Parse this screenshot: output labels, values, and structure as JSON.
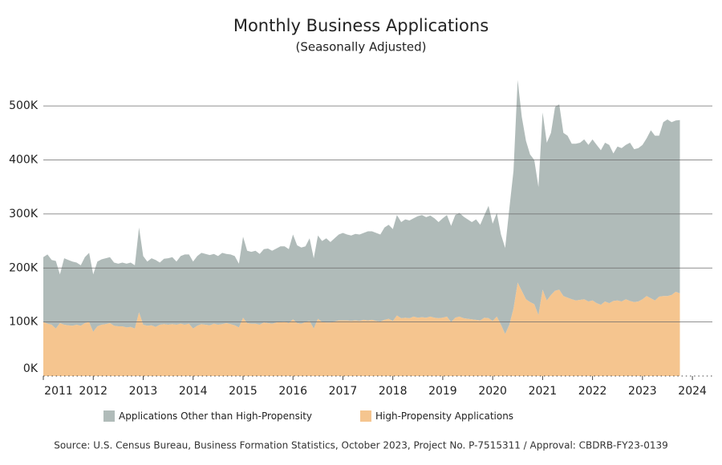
{
  "chart_data": {
    "type": "stacked_area",
    "title": "Monthly Business Applications",
    "subtitle": "(Seasonally Adjusted)",
    "source": "Source: U.S. Census Bureau, Business Formation Statistics, October 2023, Project No. P-7515311 / Approval: CBDRB-FY23-0139",
    "xlim": [
      2011,
      2024.4
    ],
    "xticks": [
      2011,
      2012,
      2013,
      2014,
      2015,
      2016,
      2017,
      2018,
      2019,
      2020,
      2021,
      2022,
      2023,
      2024
    ],
    "ylim": [
      0,
      570000
    ],
    "yticks": [
      {
        "value": 0,
        "label": "0K"
      },
      {
        "value": 100000,
        "label": "100K"
      },
      {
        "value": 200000,
        "label": "200K"
      },
      {
        "value": 300000,
        "label": "300K"
      },
      {
        "value": 400000,
        "label": "400K"
      },
      {
        "value": 500000,
        "label": "500K"
      }
    ],
    "grid": true,
    "legend": "bottom",
    "x": [
      2011,
      2011.083,
      2011.167,
      2011.25,
      2011.333,
      2011.417,
      2011.5,
      2011.583,
      2011.667,
      2011.75,
      2011.833,
      2011.917,
      2012,
      2012.083,
      2012.167,
      2012.25,
      2012.333,
      2012.417,
      2012.5,
      2012.583,
      2012.667,
      2012.75,
      2012.833,
      2012.917,
      2013,
      2013.083,
      2013.167,
      2013.25,
      2013.333,
      2013.417,
      2013.5,
      2013.583,
      2013.667,
      2013.75,
      2013.833,
      2013.917,
      2014,
      2014.083,
      2014.167,
      2014.25,
      2014.333,
      2014.417,
      2014.5,
      2014.583,
      2014.667,
      2014.75,
      2014.833,
      2014.917,
      2015,
      2015.083,
      2015.167,
      2015.25,
      2015.333,
      2015.417,
      2015.5,
      2015.583,
      2015.667,
      2015.75,
      2015.833,
      2015.917,
      2016,
      2016.083,
      2016.167,
      2016.25,
      2016.333,
      2016.417,
      2016.5,
      2016.583,
      2016.667,
      2016.75,
      2016.833,
      2016.917,
      2017,
      2017.083,
      2017.167,
      2017.25,
      2017.333,
      2017.417,
      2017.5,
      2017.583,
      2017.667,
      2017.75,
      2017.833,
      2017.917,
      2018,
      2018.083,
      2018.167,
      2018.25,
      2018.333,
      2018.417,
      2018.5,
      2018.583,
      2018.667,
      2018.75,
      2018.833,
      2018.917,
      2019,
      2019.083,
      2019.167,
      2019.25,
      2019.333,
      2019.417,
      2019.5,
      2019.583,
      2019.667,
      2019.75,
      2019.833,
      2019.917,
      2020,
      2020.083,
      2020.167,
      2020.25,
      2020.333,
      2020.417,
      2020.5,
      2020.583,
      2020.667,
      2020.75,
      2020.833,
      2020.917,
      2021,
      2021.083,
      2021.167,
      2021.25,
      2021.333,
      2021.417,
      2021.5,
      2021.583,
      2021.667,
      2021.75,
      2021.833,
      2021.917,
      2022,
      2022.083,
      2022.167,
      2022.25,
      2022.333,
      2022.417,
      2022.5,
      2022.583,
      2022.667,
      2022.75,
      2022.833,
      2022.917,
      2023,
      2023.083,
      2023.167,
      2023.25,
      2023.333,
      2023.417,
      2023.5,
      2023.583,
      2023.667,
      2023.75
    ],
    "series": [
      {
        "name": "Applications Other than High-Propensity",
        "color": "#b0bbb9",
        "values": [
          120000,
          128000,
          120000,
          125000,
          90000,
          123000,
          121000,
          119000,
          115000,
          112000,
          122000,
          128000,
          106000,
          120000,
          121000,
          122000,
          122000,
          117000,
          116000,
          118000,
          118000,
          119000,
          117000,
          157000,
          127000,
          119000,
          124000,
          124000,
          115000,
          121000,
          123000,
          124000,
          117000,
          125000,
          130000,
          128000,
          124000,
          129000,
          132000,
          131000,
          130000,
          129000,
          127000,
          132000,
          128000,
          129000,
          128000,
          118000,
          150000,
          134000,
          133000,
          135000,
          131000,
          136000,
          138000,
          135000,
          137000,
          140000,
          139000,
          137000,
          157000,
          144000,
          141000,
          140000,
          153000,
          130000,
          154000,
          150000,
          156000,
          149000,
          154000,
          159000,
          162000,
          159000,
          158000,
          160000,
          160000,
          161000,
          165000,
          164000,
          163000,
          161000,
          171000,
          174000,
          170000,
          186000,
          178000,
          182000,
          181000,
          182000,
          188000,
          189000,
          186000,
          187000,
          184000,
          178000,
          184000,
          188000,
          178000,
          190000,
          192000,
          188000,
          184000,
          180000,
          186000,
          177000,
          190000,
          208000,
          180000,
          192000,
          167000,
          159000,
          215000,
          255000,
          375000,
          322000,
          293000,
          273000,
          267000,
          237000,
          328000,
          292000,
          300000,
          340000,
          343000,
          302000,
          300000,
          288000,
          290000,
          291000,
          296000,
          290000,
          298000,
          293000,
          286000,
          294000,
          293000,
          273000,
          285000,
          284000,
          286000,
          293000,
          283000,
          284000,
          286000,
          292000,
          311000,
          305000,
          298000,
          322000,
          327000,
          320000,
          317000,
          321000
        ]
      },
      {
        "name": "High-Propensity Applications",
        "color": "#f5c58f",
        "values": [
          100000,
          97000,
          95000,
          88000,
          98000,
          95000,
          94000,
          93000,
          95000,
          93000,
          98000,
          100000,
          82000,
          92000,
          95000,
          96000,
          98000,
          93000,
          92000,
          92000,
          90000,
          91000,
          88000,
          118000,
          95000,
          93000,
          94000,
          91000,
          95000,
          96000,
          95000,
          96000,
          95000,
          97000,
          95000,
          97000,
          88000,
          93000,
          96000,
          95000,
          94000,
          97000,
          95000,
          96000,
          98000,
          96000,
          94000,
          90000,
          108000,
          98000,
          97000,
          97000,
          95000,
          99000,
          98000,
          97000,
          99000,
          100000,
          101000,
          98000,
          105000,
          98000,
          97000,
          100000,
          102000,
          88000,
          106000,
          100000,
          99000,
          99000,
          101000,
          103000,
          103000,
          103000,
          102000,
          103000,
          102000,
          104000,
          103000,
          104000,
          102000,
          101000,
          104000,
          106000,
          102000,
          112000,
          107000,
          108000,
          107000,
          110000,
          108000,
          109000,
          108000,
          110000,
          108000,
          107000,
          108000,
          110000,
          100000,
          108000,
          110000,
          107000,
          106000,
          105000,
          104000,
          103000,
          108000,
          107000,
          102000,
          110000,
          95000,
          78000,
          95000,
          125000,
          173000,
          158000,
          142000,
          137000,
          133000,
          113000,
          160000,
          140000,
          150000,
          158000,
          160000,
          148000,
          145000,
          142000,
          140000,
          141000,
          142000,
          138000,
          140000,
          135000,
          132000,
          138000,
          135000,
          139000,
          140000,
          138000,
          142000,
          139000,
          137000,
          138000,
          142000,
          148000,
          144000,
          140000,
          147000,
          148000,
          148000,
          150000,
          156000,
          153000
        ]
      }
    ]
  }
}
